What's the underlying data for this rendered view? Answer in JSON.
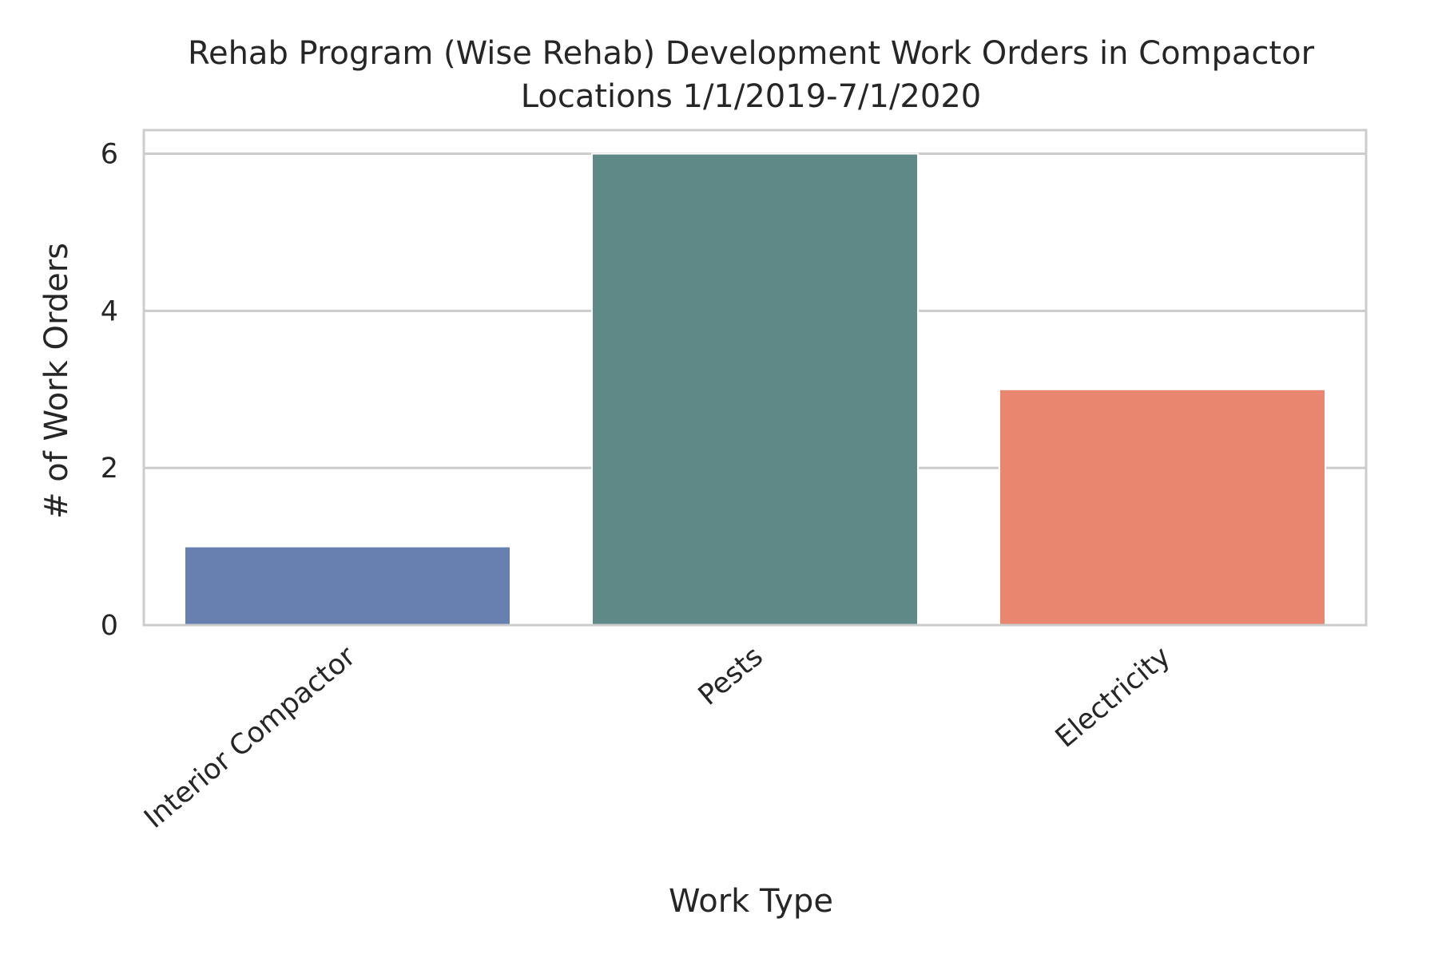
{
  "chart_data": {
    "type": "bar",
    "title": "Rehab Program (Wise Rehab) Development Work Orders in Compactor Locations 1/1/2019-7/1/2020",
    "title_lines": [
      "Rehab Program (Wise Rehab) Development Work Orders in Compactor",
      "Locations 1/1/2019-7/1/2020"
    ],
    "xlabel": "Work Type",
    "ylabel": "# of Work Orders",
    "categories": [
      "Interior Compactor",
      "Pests",
      "Electricity"
    ],
    "values": [
      1,
      6,
      3
    ],
    "colors": [
      "#6780b0",
      "#5e8986",
      "#e8866f"
    ],
    "ylim": [
      0,
      6.3
    ],
    "yticks": [
      0,
      2,
      4,
      6
    ],
    "grid": true,
    "legend": "none"
  }
}
